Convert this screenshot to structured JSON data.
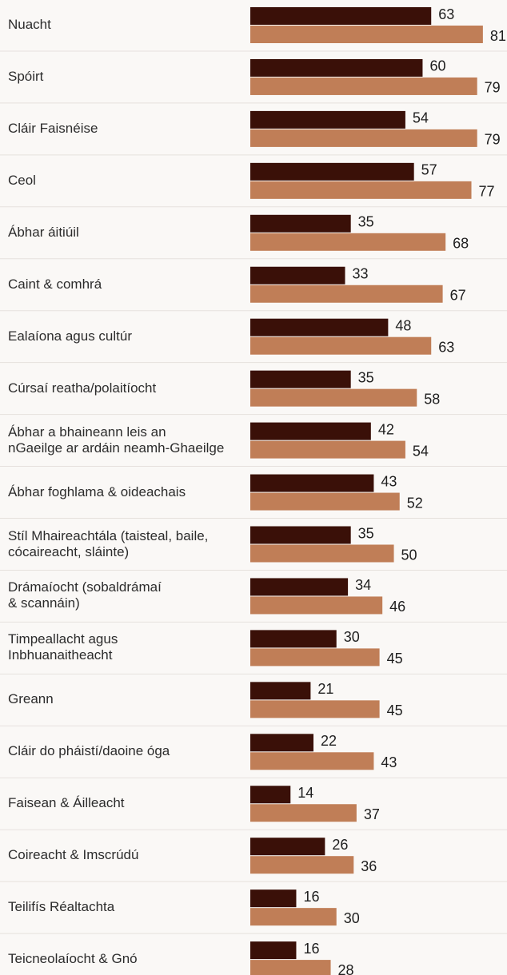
{
  "chart_data": {
    "type": "bar",
    "orientation": "horizontal",
    "categories": [
      "Nuacht",
      "Spóirt",
      "Cláir Faisnéise",
      "Ceol",
      "Ábhar áitiúil",
      "Caint & comhrá",
      "Ealaíona agus cultúr",
      "Cúrsaí reatha/polaitíocht",
      "Ábhar a bhaineann leis an\nnGaeilge ar ardáin neamh-Ghaeilge",
      "Ábhar foghlama & oideachais",
      "Stíl Mhaireachtála (taisteal, baile,\ncócaireacht, sláinte)",
      "Drámaíocht (sobaldrámaí\n& scannáin)",
      "Timpeallacht agus\nInbhuanaitheacht",
      "Greann",
      "Cláir do pháistí/daoine óga",
      "Faisean & Áilleacht",
      "Coireacht & Imscrúdú",
      "Teilifís Réaltachta",
      "Teicneolaíocht & Gnó"
    ],
    "series": [
      {
        "color": "#3a1008",
        "values": [
          63,
          60,
          54,
          57,
          35,
          33,
          48,
          35,
          42,
          43,
          35,
          34,
          30,
          21,
          22,
          14,
          26,
          16,
          16
        ]
      },
      {
        "color": "#c07e57",
        "values": [
          81,
          79,
          79,
          77,
          68,
          67,
          63,
          58,
          54,
          52,
          50,
          46,
          45,
          45,
          43,
          37,
          36,
          30,
          28
        ]
      }
    ],
    "xlim": [
      0,
      88
    ]
  }
}
